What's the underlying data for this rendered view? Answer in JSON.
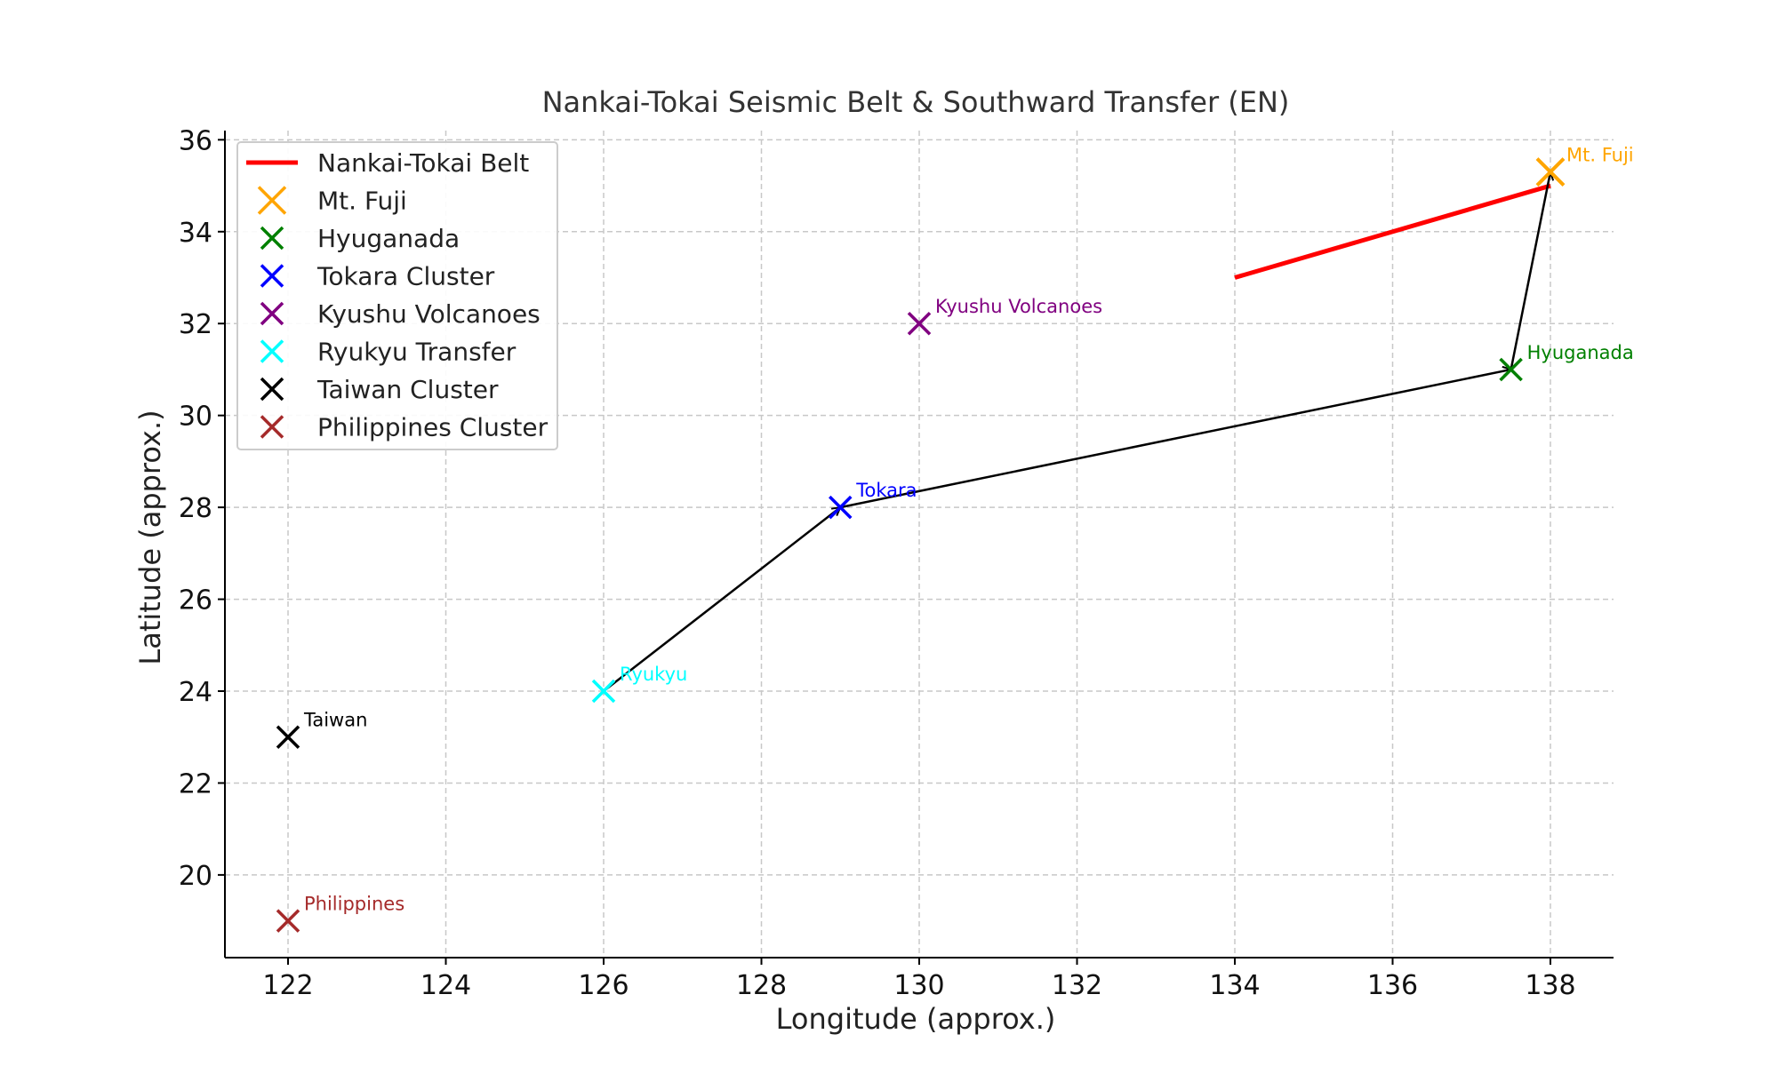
{
  "chart_data": {
    "type": "scatter",
    "title": "Nankai-Tokai Seismic Belt & Southward Transfer (EN)",
    "xlabel": "Longitude (approx.)",
    "ylabel": "Latitude (approx.)",
    "xlim": [
      121.2,
      138.8
    ],
    "ylim": [
      18.2,
      36.2
    ],
    "xticks": [
      122,
      124,
      126,
      128,
      130,
      132,
      134,
      136,
      138
    ],
    "yticks": [
      20,
      22,
      24,
      26,
      28,
      30,
      32,
      34,
      36
    ],
    "grid": true,
    "grid_style": "dashed",
    "legend_position": "upper-left",
    "line_series": [
      {
        "name": "Nankai-Tokai Belt",
        "color": "#ff0000",
        "x": [
          134,
          138
        ],
        "y": [
          33,
          35
        ]
      }
    ],
    "point_series": [
      {
        "name": "Mt. Fuji",
        "label": "Mt. Fuji",
        "color": "#ffa500",
        "x": 138,
        "y": 35.3,
        "size": "large"
      },
      {
        "name": "Hyuganada",
        "label": "Hyuganada",
        "color": "#008000",
        "x": 137.5,
        "y": 31,
        "size": "large"
      },
      {
        "name": "Tokara Cluster",
        "label": "Tokara",
        "color": "#0000ff",
        "x": 129,
        "y": 28,
        "size": "large"
      },
      {
        "name": "Kyushu Volcanoes",
        "label": "Kyushu Volcanoes",
        "color": "#800080",
        "x": 130,
        "y": 32,
        "size": "large"
      },
      {
        "name": "Ryukyu Transfer",
        "label": "Ryukyu",
        "color": "#00ffff",
        "x": 126,
        "y": 24,
        "size": "large"
      },
      {
        "name": "Taiwan Cluster",
        "label": "Taiwan",
        "color": "#000000",
        "x": 122,
        "y": 23,
        "size": "large"
      },
      {
        "name": "Philippines Cluster",
        "label": "Philippines",
        "color": "#a52a2a",
        "x": 122,
        "y": 19,
        "size": "large"
      }
    ],
    "arrows": [
      {
        "from": [
          126,
          24
        ],
        "to": [
          129,
          28
        ]
      },
      {
        "from": [
          129,
          28
        ],
        "to": [
          137.5,
          31
        ]
      },
      {
        "from": [
          137.5,
          31
        ],
        "to": [
          138,
          35.3
        ]
      }
    ]
  }
}
